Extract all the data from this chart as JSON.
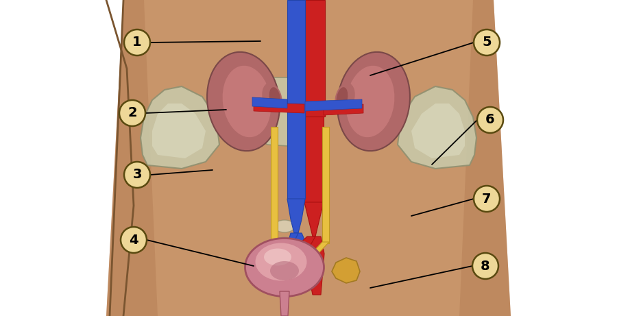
{
  "bg_white": "#FFFFFF",
  "body_tan": "#C8956A",
  "body_light": "#D4A882",
  "skin_edge": "#B07850",
  "kidney_outer": "#B06868",
  "kidney_mid": "#C47878",
  "kidney_inner": "#D09090",
  "kidney_hilum": "#985050",
  "adrenal_color": "#D4A030",
  "adrenal_edge": "#A07820",
  "red_tube": "#CC2020",
  "red_dark": "#AA1010",
  "blue_tube": "#3355CC",
  "blue_dark": "#2244AA",
  "yellow_tube": "#E8C040",
  "yellow_dark": "#C09820",
  "bladder_outer": "#CC8090",
  "bladder_mid": "#E0A0A8",
  "bladder_inner": "#F0C8C8",
  "bladder_fold": "#B87080",
  "bone_fill": "#C8C8A8",
  "bone_edge": "#909070",
  "bone_light": "#E0E0C8",
  "label_bg": "#EED898",
  "label_border": "#5A4A10",
  "label_text": "#000000",
  "figsize": [
    9.0,
    4.61
  ],
  "dpi": 100
}
